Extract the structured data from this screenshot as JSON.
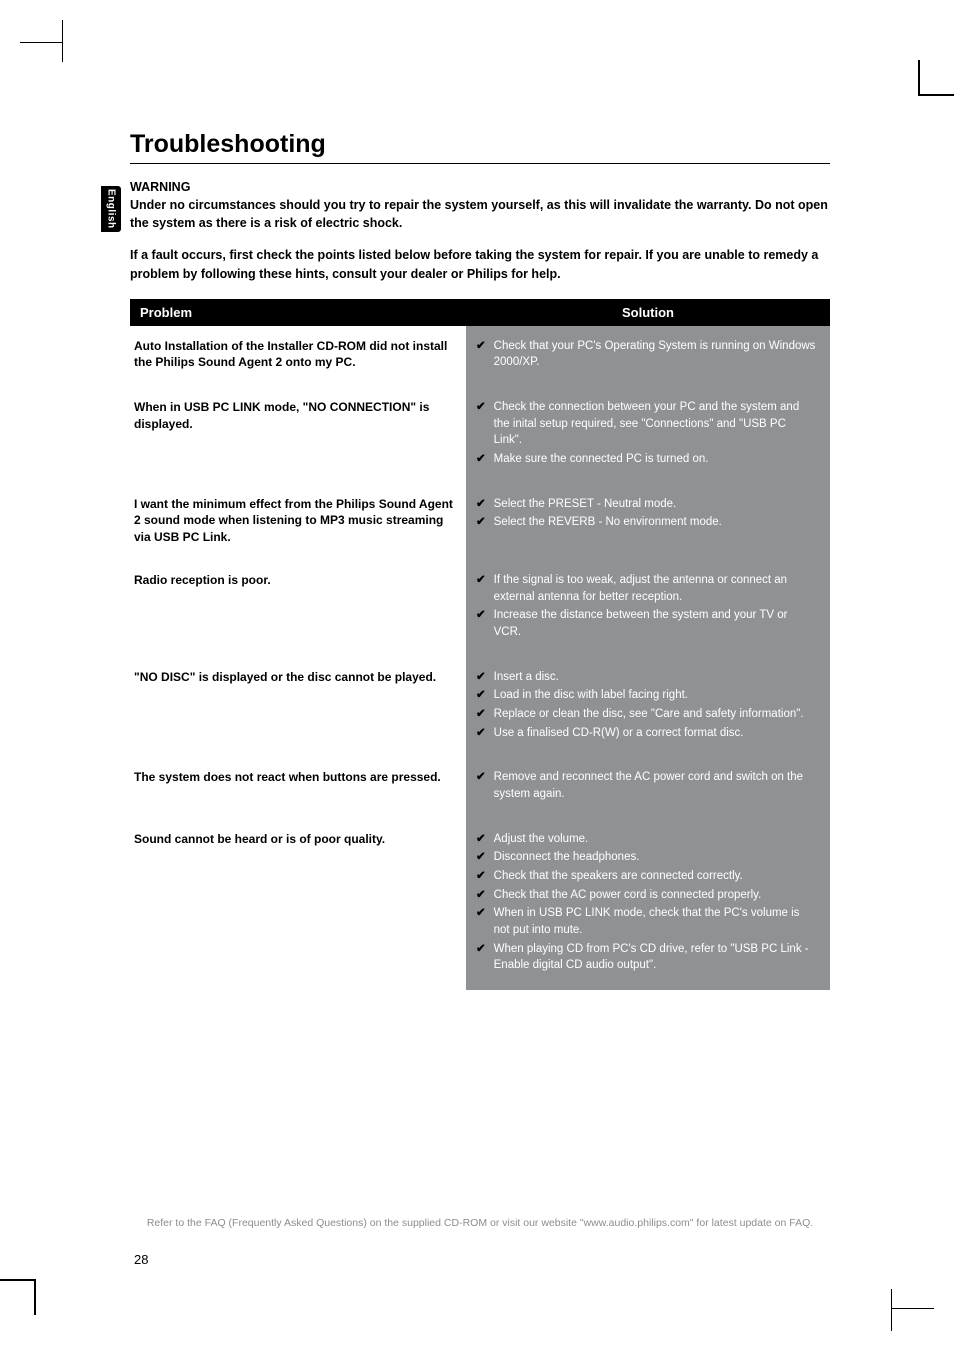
{
  "sideTab": "English",
  "sectionTitle": "Troubleshooting",
  "warning": {
    "title": "WARNING",
    "body": "Under no circumstances should you try to repair the system yourself, as this will invalidate the warranty.  Do not open the system as there is a risk of electric shock."
  },
  "instruction": "If a fault occurs, first check the points listed below before taking the system for repair. If you are unable to remedy a problem by following these hints, consult your dealer or Philips for help.",
  "table": {
    "headers": {
      "problem": "Problem",
      "solution": "Solution"
    },
    "rows": [
      {
        "problem": "Auto Installation of the Installer CD-ROM did not install the Philips Sound Agent 2 onto my PC.",
        "solutions": [
          "Check that your PC's Operating System is running on Windows 2000/XP."
        ]
      },
      {
        "problem": "When in USB PC LINK mode, \"NO CONNECTION\" is displayed.",
        "solutions": [
          "Check the connection between your PC and the system and the inital setup required, see \"Connections\" and \"USB PC Link\".",
          "Make sure the connected PC is turned on."
        ]
      },
      {
        "problem": "I want the minimum effect from the Philips Sound Agent 2 sound mode when listening to MP3 music streaming via USB PC Link.",
        "solutions": [
          "Select the PRESET - Neutral mode.",
          "Select the REVERB - No environment mode."
        ]
      },
      {
        "problem": "Radio reception is poor.",
        "solutions": [
          "If the signal is too weak, adjust the antenna or connect an external antenna for better reception.",
          "Increase the distance between the system and your TV or VCR."
        ]
      },
      {
        "problem": "\"NO DISC\" is displayed or the disc cannot be played.",
        "solutions": [
          "Insert a disc.",
          "Load in the disc with label facing right.",
          "Replace or clean the disc, see \"Care and safety information\".",
          "Use a finalised CD-R(W) or a correct format disc."
        ]
      },
      {
        "problem": "The system does not react when buttons are pressed.",
        "solutions": [
          "Remove and reconnect the AC power cord and switch on the system again."
        ]
      },
      {
        "problem": "Sound cannot be heard or is of poor quality.",
        "solutions": [
          "Adjust the volume.",
          "Disconnect the headphones.",
          "Check that the speakers are connected correctly.",
          "Check that the AC power cord is connected properly.",
          "When in USB PC LINK mode, check that the PC's volume is not put into mute.",
          "When playing CD from PC's CD drive, refer to \"USB PC Link - Enable digital CD audio output\"."
        ]
      }
    ]
  },
  "footerRef": "Refer to the FAQ (Frequently Asked Questions) on the supplied CD-ROM or visit our website \"www.audio.philips.com\" for latest update on FAQ.",
  "pageNumber": "28",
  "colors": {
    "solutionBg": "#8f9295",
    "solutionText": "#ffffff",
    "headerBg": "#000000"
  }
}
